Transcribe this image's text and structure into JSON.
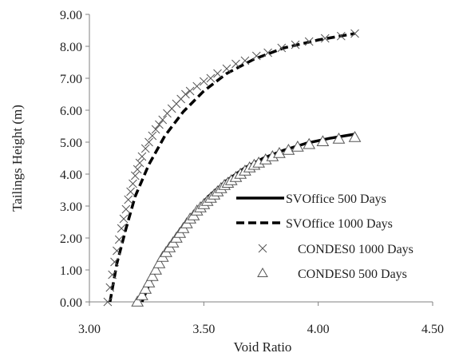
{
  "chart_data": {
    "type": "line",
    "xlabel": "Void Ratio",
    "ylabel": "Tailings Height (m)",
    "xlim": [
      3.0,
      4.5
    ],
    "ylim": [
      0.0,
      9.0
    ],
    "xticks": [
      "3.00",
      "3.50",
      "4.00",
      "4.50"
    ],
    "yticks": [
      "0.00",
      "1.00",
      "2.00",
      "3.00",
      "4.00",
      "5.00",
      "6.00",
      "7.00",
      "8.00",
      "9.00"
    ],
    "grid": false,
    "legend_position": "lower-right",
    "series": [
      {
        "name": "SVOffice 500 Days",
        "style": "solid-line",
        "color": "#000000",
        "x": [
          3.23,
          3.27,
          3.32,
          3.38,
          3.45,
          3.52,
          3.6,
          3.68,
          3.76,
          3.85,
          3.95,
          4.05,
          4.16
        ],
        "y": [
          0.0,
          0.7,
          1.4,
          2.1,
          2.75,
          3.3,
          3.8,
          4.2,
          4.5,
          4.75,
          4.97,
          5.12,
          5.25
        ]
      },
      {
        "name": "SVOffice 1000 Days",
        "style": "dashed-line",
        "color": "#000000",
        "x": [
          3.09,
          3.12,
          3.16,
          3.2,
          3.26,
          3.33,
          3.41,
          3.5,
          3.6,
          3.72,
          3.85,
          4.0,
          4.16
        ],
        "y": [
          0.0,
          1.2,
          2.3,
          3.3,
          4.3,
          5.2,
          5.95,
          6.6,
          7.15,
          7.6,
          7.95,
          8.2,
          8.4
        ]
      },
      {
        "name": "CONDES0 1000 Days",
        "style": "x-marker",
        "color": "#555555",
        "x": [
          3.08,
          3.09,
          3.1,
          3.11,
          3.12,
          3.13,
          3.14,
          3.15,
          3.16,
          3.17,
          3.18,
          3.19,
          3.2,
          3.21,
          3.22,
          3.23,
          3.245,
          3.26,
          3.275,
          3.29,
          3.305,
          3.32,
          3.34,
          3.36,
          3.38,
          3.4,
          3.42,
          3.44,
          3.47,
          3.5,
          3.53,
          3.56,
          3.6,
          3.64,
          3.68,
          3.73,
          3.78,
          3.84,
          3.9,
          3.96,
          4.03,
          4.1,
          4.16
        ],
        "y": [
          0.0,
          0.45,
          0.85,
          1.25,
          1.6,
          1.95,
          2.3,
          2.6,
          2.9,
          3.2,
          3.45,
          3.7,
          3.95,
          4.15,
          4.35,
          4.55,
          4.8,
          5.0,
          5.2,
          5.4,
          5.55,
          5.7,
          5.9,
          6.05,
          6.2,
          6.35,
          6.5,
          6.6,
          6.75,
          6.9,
          7.0,
          7.15,
          7.3,
          7.45,
          7.55,
          7.7,
          7.8,
          7.95,
          8.05,
          8.15,
          8.25,
          8.32,
          8.4
        ]
      },
      {
        "name": "CONDES0 500 Days",
        "style": "triangle-marker",
        "color": "#555555",
        "x": [
          3.21,
          3.23,
          3.245,
          3.26,
          3.275,
          3.29,
          3.305,
          3.32,
          3.335,
          3.35,
          3.365,
          3.38,
          3.395,
          3.41,
          3.425,
          3.44,
          3.455,
          3.47,
          3.485,
          3.5,
          3.515,
          3.53,
          3.545,
          3.56,
          3.575,
          3.59,
          3.605,
          3.62,
          3.64,
          3.66,
          3.68,
          3.7,
          3.72,
          3.74,
          3.77,
          3.8,
          3.83,
          3.87,
          3.91,
          3.96,
          4.02,
          4.09,
          4.16
        ],
        "y": [
          0.0,
          0.2,
          0.4,
          0.6,
          0.8,
          1.0,
          1.2,
          1.4,
          1.55,
          1.7,
          1.85,
          2.0,
          2.15,
          2.3,
          2.45,
          2.6,
          2.7,
          2.85,
          2.95,
          3.05,
          3.15,
          3.25,
          3.35,
          3.45,
          3.55,
          3.65,
          3.72,
          3.8,
          3.9,
          4.0,
          4.1,
          4.2,
          4.28,
          4.35,
          4.45,
          4.55,
          4.65,
          4.75,
          4.85,
          4.93,
          5.02,
          5.1,
          5.15
        ]
      }
    ]
  }
}
